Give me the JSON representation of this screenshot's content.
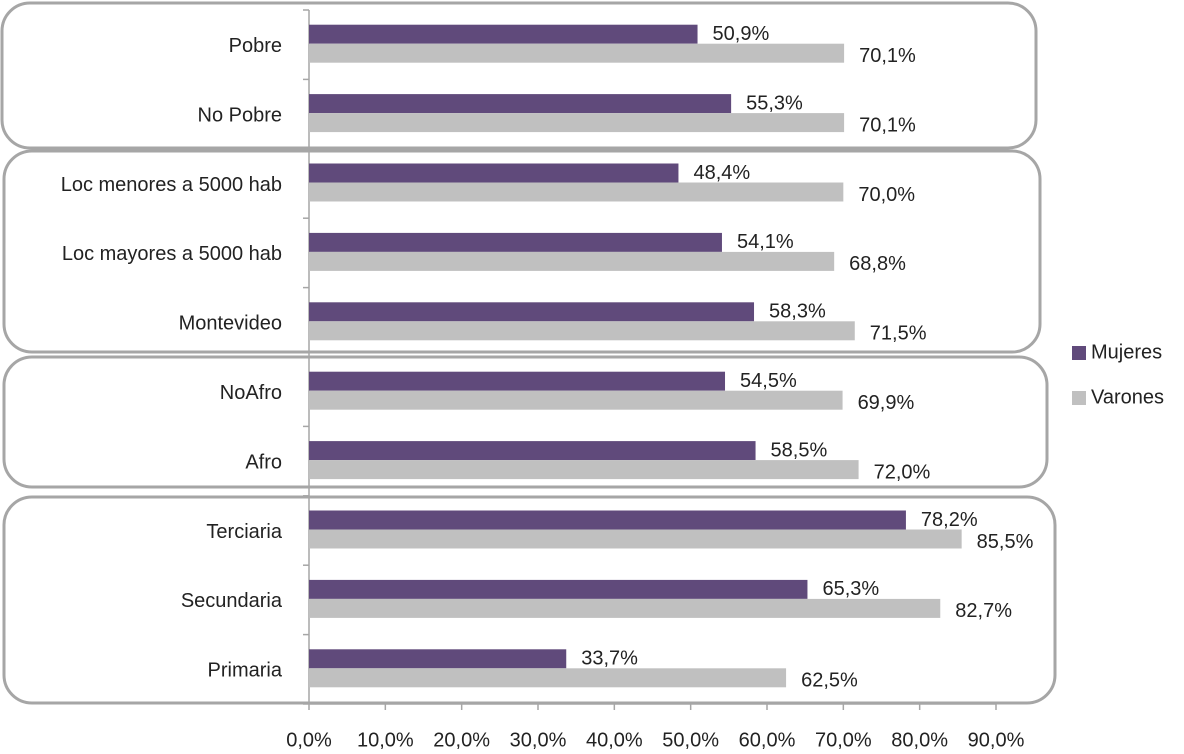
{
  "chart_data": {
    "type": "bar",
    "orientation": "horizontal",
    "categories": [
      "Pobre",
      "No Pobre",
      "Loc menores a 5000 hab",
      "Loc mayores a 5000 hab",
      "Montevideo",
      "NoAfro",
      "Afro",
      "Terciaria",
      "Secundaria",
      "Primaria"
    ],
    "series": [
      {
        "name": "Mujeres",
        "color": "#604a7b",
        "values": [
          50.9,
          55.3,
          48.4,
          54.1,
          58.3,
          54.5,
          58.5,
          78.2,
          65.3,
          33.7
        ],
        "value_labels": [
          "50,9%",
          "55,3%",
          "48,4%",
          "54,1%",
          "58,3%",
          "54,5%",
          "58,5%",
          "78,2%",
          "65,3%",
          "33,7%"
        ]
      },
      {
        "name": "Varones",
        "color": "#c0c0c0",
        "values": [
          70.1,
          70.1,
          70.0,
          68.8,
          71.5,
          69.9,
          72.0,
          85.5,
          82.7,
          62.5
        ],
        "value_labels": [
          "70,1%",
          "70,1%",
          "70,0%",
          "68,8%",
          "71,5%",
          "69,9%",
          "72,0%",
          "85,5%",
          "82,7%",
          "62,5%"
        ]
      }
    ],
    "xlim": [
      0,
      90
    ],
    "xticks": [
      {
        "value": 0,
        "label": "0,0%"
      },
      {
        "value": 10,
        "label": "10,0%"
      },
      {
        "value": 20,
        "label": "20,0%"
      },
      {
        "value": 30,
        "label": "30,0%"
      },
      {
        "value": 40,
        "label": "40,0%"
      },
      {
        "value": 50,
        "label": "50,0%"
      },
      {
        "value": 60,
        "label": "60,0%"
      },
      {
        "value": 70,
        "label": "70,0%"
      },
      {
        "value": 80,
        "label": "80,0%"
      },
      {
        "value": 90,
        "label": "90,0%"
      }
    ],
    "grid": false,
    "legend": "right"
  }
}
